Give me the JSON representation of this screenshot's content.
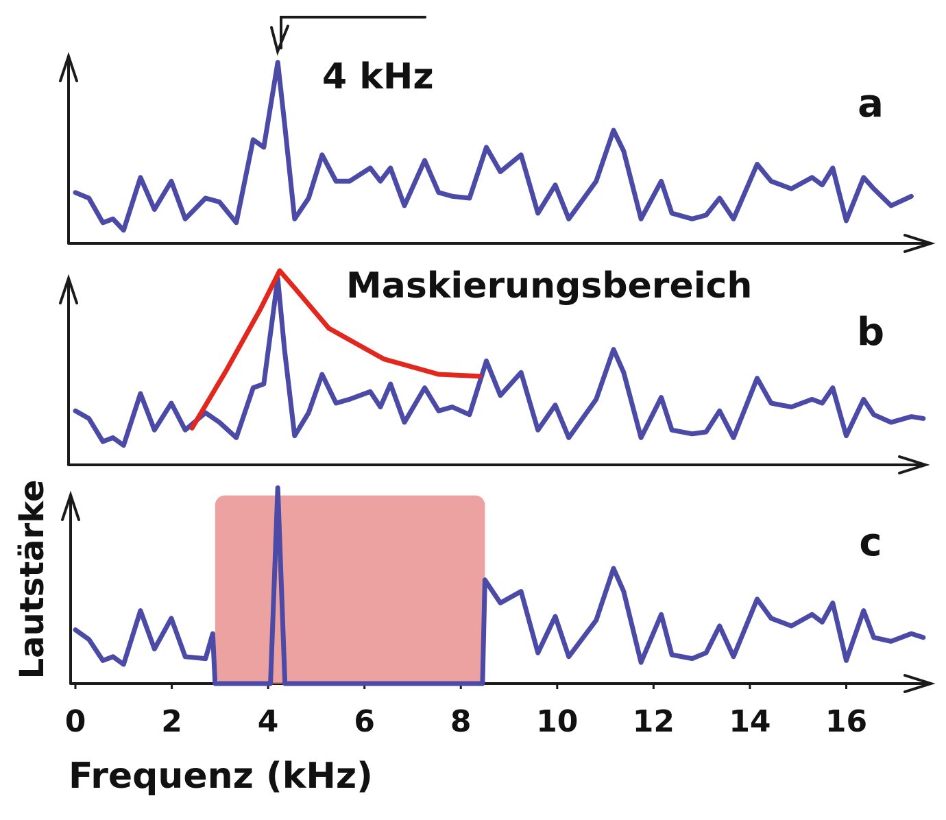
{
  "chart_data": [
    {
      "type": "line",
      "label": "a",
      "annotation": "4 kHz",
      "xlim": [
        0,
        17.8
      ],
      "ylim": [
        0,
        10
      ],
      "series": [
        {
          "color": "#4b4aa6",
          "x": [
            0,
            0.28,
            0.57,
            0.78,
            1.0,
            1.35,
            1.64,
            1.99,
            2.28,
            2.7,
            2.99,
            3.34,
            3.69,
            3.91,
            4.2,
            4.34,
            4.55,
            4.84,
            5.12,
            5.41,
            5.69,
            6.12,
            6.33,
            6.54,
            6.83,
            7.25,
            7.54,
            7.82,
            8.18,
            8.53,
            8.82,
            9.25,
            9.6,
            9.96,
            10.24,
            10.81,
            11.17,
            11.38,
            11.74,
            12.16,
            12.38,
            12.8,
            13.09,
            13.37,
            13.66,
            14.15,
            14.44,
            14.86,
            15.29,
            15.5,
            15.72,
            16.0,
            16.36,
            16.57,
            16.93,
            17.35
          ],
          "values": [
            2.7,
            2.4,
            1.1,
            1.3,
            0.7,
            3.5,
            1.8,
            3.3,
            1.3,
            2.4,
            2.2,
            1.1,
            5.5,
            5.1,
            9.6,
            6.4,
            1.3,
            2.4,
            4.7,
            3.3,
            3.3,
            4.0,
            3.3,
            4.0,
            2.0,
            4.4,
            2.7,
            2.5,
            2.4,
            5.1,
            3.8,
            4.7,
            1.6,
            3.1,
            1.3,
            3.3,
            6.0,
            4.9,
            1.3,
            3.3,
            1.6,
            1.3,
            1.5,
            2.4,
            1.3,
            4.2,
            3.3,
            2.9,
            3.5,
            3.1,
            4.0,
            1.2,
            3.5,
            2.9,
            2.0,
            2.5
          ]
        }
      ]
    },
    {
      "type": "line",
      "label": "b",
      "annotation": "Maskierungsbereich",
      "xlim": [
        0,
        17.8
      ],
      "ylim": [
        0,
        10
      ],
      "series": [
        {
          "color": "#4b4aa6",
          "x": [
            0,
            0.28,
            0.57,
            0.78,
            1.0,
            1.35,
            1.64,
            1.99,
            2.28,
            2.7,
            2.99,
            3.34,
            3.69,
            3.91,
            4.2,
            4.34,
            4.55,
            4.84,
            5.12,
            5.41,
            5.69,
            6.12,
            6.33,
            6.54,
            6.83,
            7.25,
            7.54,
            7.82,
            8.18,
            8.53,
            8.82,
            9.25,
            9.6,
            9.96,
            10.24,
            10.81,
            11.17,
            11.38,
            11.74,
            12.16,
            12.38,
            12.8,
            13.09,
            13.37,
            13.66,
            14.15,
            14.44,
            14.86,
            15.29,
            15.5,
            15.72,
            16.0,
            16.36,
            16.57,
            16.93,
            17.35,
            17.6
          ],
          "values": [
            2.6,
            2.2,
            1.0,
            1.2,
            0.8,
            3.5,
            1.6,
            3.0,
            1.6,
            2.5,
            2.0,
            1.2,
            3.8,
            4.0,
            9.5,
            5.8,
            1.3,
            2.5,
            4.5,
            3.0,
            3.2,
            3.6,
            2.8,
            4.0,
            2.0,
            3.8,
            2.6,
            2.8,
            2.4,
            5.2,
            3.4,
            4.6,
            1.6,
            2.9,
            1.2,
            3.2,
            5.8,
            4.6,
            1.2,
            3.3,
            1.6,
            1.4,
            1.5,
            2.6,
            1.2,
            4.3,
            3.0,
            2.8,
            3.2,
            3.0,
            3.8,
            1.3,
            3.2,
            2.4,
            2.0,
            2.3,
            2.2
          ]
        },
        {
          "color": "#e0281e",
          "x": [
            2.42,
            3.13,
            3.84,
            4.24,
            4.55,
            5.26,
            6.4,
            7.54,
            8.39
          ],
          "values": [
            1.7,
            4.7,
            7.9,
            9.9,
            9.0,
            6.9,
            5.3,
            4.5,
            4.4
          ]
        }
      ]
    },
    {
      "type": "line",
      "label": "c",
      "xlabel": "Frequenz (kHz)",
      "ylabel": "Lautstärke",
      "xlim": [
        0,
        17.8
      ],
      "ylim": [
        0,
        10
      ],
      "xticks": [
        0,
        2,
        4,
        6,
        8,
        10,
        12,
        14,
        16
      ],
      "shaded_region": {
        "x": [
          2.9,
          8.5
        ],
        "top": 9.8,
        "color": "#e8928f"
      },
      "series": [
        {
          "color": "#4b4aa6",
          "x": [
            0,
            0.28,
            0.57,
            0.78,
            1.0,
            1.35,
            1.64,
            1.99,
            2.28,
            2.7,
            2.85,
            2.9,
            4.05,
            4.2,
            4.35,
            8.45,
            8.5,
            8.82,
            9.25,
            9.6,
            9.96,
            10.24,
            10.81,
            11.17,
            11.38,
            11.74,
            12.16,
            12.38,
            12.8,
            13.09,
            13.37,
            13.66,
            14.15,
            14.44,
            14.86,
            15.29,
            15.5,
            15.72,
            16.0,
            16.36,
            16.57,
            16.93,
            17.35,
            17.6
          ],
          "values": [
            2.8,
            2.3,
            1.2,
            1.4,
            1.0,
            3.8,
            1.8,
            3.4,
            1.4,
            1.3,
            2.6,
            0,
            0,
            10.2,
            0,
            0,
            5.4,
            4.2,
            4.8,
            1.6,
            3.5,
            1.4,
            3.3,
            6.0,
            4.8,
            1.1,
            3.6,
            1.5,
            1.3,
            1.6,
            3.0,
            1.4,
            4.4,
            3.4,
            3.0,
            3.6,
            3.2,
            4.2,
            1.2,
            3.8,
            2.4,
            2.2,
            2.6,
            2.4
          ]
        }
      ]
    }
  ]
}
